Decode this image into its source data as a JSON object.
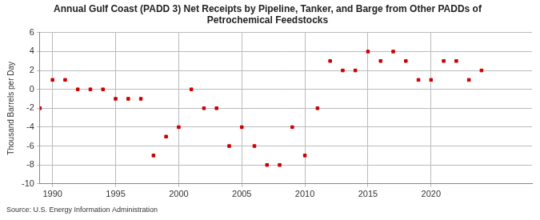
{
  "chart_data": {
    "type": "scatter",
    "title": [
      "Annual Gulf Coast (PADD 3) Net Receipts by Pipeline, Tanker, and Barge from Other PADDs of",
      "Petrochemical Feedstocks"
    ],
    "y_label": "Thousand Barrels per Day",
    "source": "Source: U.S. Energy Information Administration",
    "x": [
      1989,
      1990,
      1991,
      1992,
      1993,
      1994,
      1995,
      1996,
      1997,
      1998,
      1999,
      2000,
      2001,
      2002,
      2003,
      2004,
      2005,
      2006,
      2007,
      2008,
      2009,
      2010,
      2011,
      2012,
      2013,
      2014,
      2015,
      2016,
      2017,
      2018,
      2019,
      2020,
      2021,
      2022,
      2023,
      2024
    ],
    "values": [
      -2,
      1,
      1,
      0,
      0,
      0,
      -1,
      -1,
      -1,
      -7,
      -5,
      -4,
      0,
      -2,
      -2,
      -6,
      -4,
      -6,
      -8,
      -8,
      -4,
      -7,
      -2,
      3,
      2,
      2,
      4,
      3,
      4,
      3,
      1,
      1,
      3,
      3,
      1,
      2
    ],
    "color": "#cc0000",
    "marker": "square",
    "xlim": [
      1989,
      2028
    ],
    "xticks": [
      1990,
      1995,
      2000,
      2005,
      2010,
      2015,
      2020
    ],
    "ylim": [
      -10,
      6
    ],
    "yticks": [
      -10,
      -8,
      -6,
      -4,
      -2,
      0,
      2,
      4,
      6
    ],
    "grid": true
  }
}
